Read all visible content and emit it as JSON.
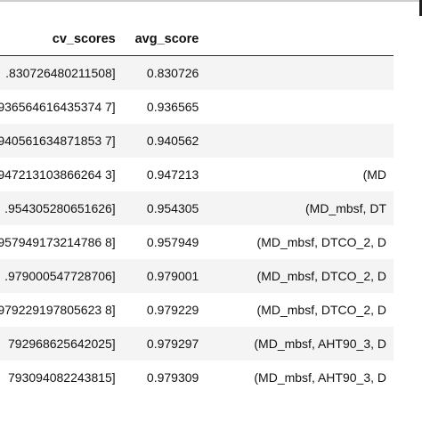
{
  "table": {
    "columns": [
      "cv_scores",
      "avg_score",
      ""
    ],
    "rows": [
      {
        "cv_scores": ".830726480211508]",
        "avg_score": "0.830726",
        "features": ""
      },
      {
        "cv_scores": "936564616435374 7]",
        "avg_score": "0.936565",
        "features": ""
      },
      {
        "cv_scores": "940561634871853 7]",
        "avg_score": "0.940562",
        "features": ""
      },
      {
        "cv_scores": "947213103866264 3]",
        "avg_score": "0.947213",
        "features": "(MD"
      },
      {
        "cv_scores": ".954305280651626]",
        "avg_score": "0.954305",
        "features": "(MD_mbsf, DT"
      },
      {
        "cv_scores": "957949173214786 8]",
        "avg_score": "0.957949",
        "features": "(MD_mbsf, DTCO_2, D"
      },
      {
        "cv_scores": ".979000547728706]",
        "avg_score": "0.979001",
        "features": "(MD_mbsf, DTCO_2, D"
      },
      {
        "cv_scores": "979229197805623 8]",
        "avg_score": "0.979229",
        "features": "(MD_mbsf, DTCO_2, D"
      },
      {
        "cv_scores": "792968625642025]",
        "avg_score": "0.979297",
        "features": "(MD_mbsf, AHT90_3, D"
      },
      {
        "cv_scores": "793094082243815]",
        "avg_score": "0.979309",
        "features": "(MD_mbsf, AHT90_3, D"
      }
    ]
  }
}
